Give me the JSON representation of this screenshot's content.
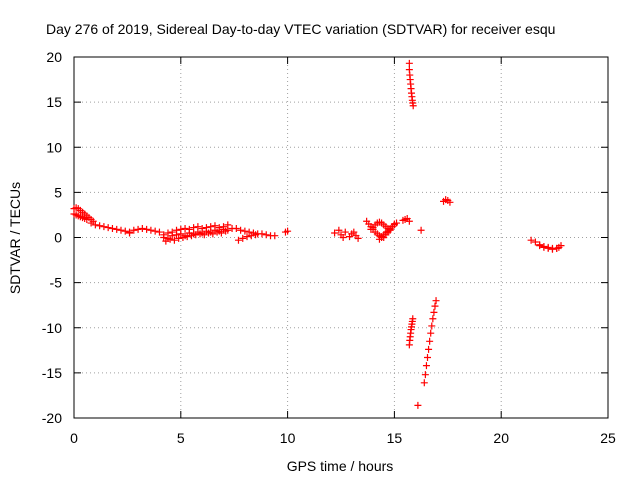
{
  "chart_data": {
    "type": "scatter",
    "title": "Day 276 of 2019, Sidereal Day-to-day VTEC variation (SDTVAR) for receiver esqu",
    "xlabel": "GPS time / hours",
    "ylabel": "SDTVAR / TECUs",
    "xlim": [
      0,
      25
    ],
    "ylim": [
      -20,
      20
    ],
    "xticks": [
      0,
      5,
      10,
      15,
      20,
      25
    ],
    "yticks": [
      -20,
      -15,
      -10,
      -5,
      0,
      5,
      10,
      15,
      20
    ],
    "grid": true,
    "marker": "+",
    "color": "#ff0000",
    "segments": [
      {
        "x": [
          0.0,
          0.1,
          0.2,
          0.3,
          0.4,
          0.5,
          0.6,
          0.7,
          0.8,
          0.9
        ],
        "y": [
          3.2,
          3.3,
          3.2,
          3.0,
          2.8,
          2.6,
          2.4,
          2.2,
          2.0,
          1.8
        ]
      },
      {
        "x": [
          0.0,
          0.1,
          0.2,
          0.3,
          0.4,
          0.5,
          0.6
        ],
        "y": [
          2.6,
          2.5,
          2.4,
          2.3,
          2.2,
          2.1,
          2.0
        ]
      },
      {
        "x": [
          0.8,
          1.0,
          1.2,
          1.4,
          1.6,
          1.8,
          2.0,
          2.2,
          2.4,
          2.6
        ],
        "y": [
          1.6,
          1.4,
          1.3,
          1.2,
          1.1,
          1.0,
          0.9,
          0.8,
          0.7,
          0.5
        ]
      },
      {
        "x": [
          2.6,
          2.8,
          3.0,
          3.2,
          3.4,
          3.6,
          3.8,
          4.0
        ],
        "y": [
          0.6,
          0.8,
          0.9,
          1.0,
          0.9,
          0.8,
          0.7,
          0.6
        ]
      },
      {
        "x": [
          4.2,
          4.4,
          4.6,
          4.8,
          5.0,
          5.2,
          5.4,
          5.6,
          5.8,
          6.0,
          6.2,
          6.4,
          6.6,
          6.8,
          7.0,
          7.2,
          7.4
        ],
        "y": [
          0.3,
          0.5,
          0.6,
          0.8,
          0.9,
          1.0,
          0.9,
          1.1,
          1.2,
          1.0,
          1.1,
          1.2,
          1.3,
          1.1,
          1.2,
          1.4,
          1.0
        ]
      },
      {
        "x": [
          4.2,
          4.4,
          4.6,
          4.8,
          5.0,
          5.2,
          5.4,
          5.6,
          5.8,
          6.0,
          6.2,
          6.4,
          6.6,
          6.8,
          7.0,
          7.2
        ],
        "y": [
          0.0,
          -0.1,
          0.2,
          0.3,
          0.4,
          0.2,
          0.5,
          0.4,
          0.6,
          0.5,
          0.7,
          0.6,
          0.8,
          0.7,
          0.9,
          0.8
        ]
      },
      {
        "x": [
          4.3,
          4.5,
          4.7,
          4.9,
          5.1,
          5.3,
          5.5,
          5.7,
          5.9,
          6.1,
          6.3,
          6.5,
          6.7,
          6.9,
          7.1
        ],
        "y": [
          -0.4,
          -0.2,
          -0.3,
          -0.1,
          0.0,
          0.1,
          0.2,
          0.3,
          0.4,
          0.3,
          0.5,
          0.4,
          0.6,
          0.5,
          0.7
        ]
      },
      {
        "x": [
          7.6,
          7.8,
          8.0,
          8.2,
          8.4,
          8.6,
          8.8,
          9.0,
          9.2,
          9.4
        ],
        "y": [
          1.0,
          0.8,
          0.7,
          0.6,
          0.5,
          0.4,
          0.4,
          0.3,
          0.2,
          0.2
        ]
      },
      {
        "x": [
          7.7,
          7.9,
          8.1,
          8.3,
          8.5
        ],
        "y": [
          -0.3,
          -0.1,
          0.1,
          0.2,
          0.3
        ]
      },
      {
        "x": [
          9.9,
          10.0
        ],
        "y": [
          0.6,
          0.7
        ]
      },
      {
        "x": [
          12.2,
          12.4,
          12.5,
          12.6,
          12.7
        ],
        "y": [
          0.5,
          0.8,
          0.3,
          0.0,
          0.6
        ]
      },
      {
        "x": [
          12.9,
          13.0,
          13.1,
          13.2,
          13.3
        ],
        "y": [
          0.1,
          0.4,
          0.6,
          0.2,
          -0.1
        ]
      },
      {
        "x": [
          13.7,
          13.8,
          13.9,
          14.0,
          14.1,
          14.2,
          14.3,
          14.4,
          14.5,
          14.6,
          14.7,
          14.8,
          14.9,
          15.0
        ],
        "y": [
          1.8,
          1.5,
          1.2,
          0.9,
          0.6,
          0.4,
          0.2,
          0.1,
          0.0,
          0.3,
          0.6,
          0.9,
          1.2,
          1.5
        ]
      },
      {
        "x": [
          13.9,
          14.0,
          14.1,
          14.2,
          14.3,
          14.4,
          14.5,
          14.6,
          14.7,
          14.8
        ],
        "y": [
          0.9,
          1.1,
          1.4,
          1.6,
          1.7,
          1.6,
          1.4,
          1.2,
          1.0,
          0.8
        ]
      },
      {
        "x": [
          14.3,
          14.4,
          14.5,
          14.6,
          14.7,
          14.8,
          14.9,
          15.0,
          15.1
        ],
        "y": [
          -0.2,
          0.0,
          0.3,
          0.5,
          0.7,
          1.0,
          1.2,
          1.4,
          1.6
        ]
      },
      {
        "x": [
          15.4,
          15.5,
          15.6,
          15.7
        ],
        "y": [
          1.9,
          2.0,
          2.1,
          1.8
        ]
      },
      {
        "x": [
          15.7,
          15.7,
          15.72,
          15.74,
          15.76,
          15.78,
          15.8,
          15.82,
          15.84,
          15.86,
          15.88
        ],
        "y": [
          19.3,
          18.6,
          18.0,
          17.5,
          17.0,
          16.5,
          16.0,
          15.6,
          15.2,
          14.9,
          14.6
        ]
      },
      {
        "x": [
          15.7,
          15.72,
          15.74,
          15.76,
          15.78,
          15.8,
          15.82,
          15.84,
          15.86
        ],
        "y": [
          -11.9,
          -11.4,
          -11.0,
          -10.6,
          -10.2,
          -9.9,
          -9.6,
          -9.3,
          -9.0
        ]
      },
      {
        "x": [
          16.1
        ],
        "y": [
          -18.6
        ]
      },
      {
        "x": [
          16.25
        ],
        "y": [
          0.8
        ]
      },
      {
        "x": [
          16.4,
          16.45,
          16.5,
          16.55,
          16.6,
          16.65,
          16.7,
          16.75,
          16.8,
          16.85,
          16.9,
          16.95
        ],
        "y": [
          -16.1,
          -15.2,
          -14.2,
          -13.3,
          -12.4,
          -11.5,
          -10.6,
          -9.8,
          -9.0,
          -8.3,
          -7.6,
          -7.0
        ]
      },
      {
        "x": [
          17.3,
          17.4,
          17.5,
          17.6
        ],
        "y": [
          4.0,
          4.2,
          4.1,
          3.9
        ]
      },
      {
        "x": [
          21.4,
          21.6,
          21.8,
          22.0,
          22.2,
          22.4,
          22.6,
          22.8
        ],
        "y": [
          -0.3,
          -0.5,
          -0.8,
          -1.0,
          -1.1,
          -1.2,
          -1.2,
          -0.9
        ]
      },
      {
        "x": [
          21.8,
          22.0,
          22.2,
          22.4,
          22.6,
          22.7
        ],
        "y": [
          -0.9,
          -1.1,
          -1.2,
          -1.3,
          -1.2,
          -1.1
        ]
      }
    ]
  }
}
